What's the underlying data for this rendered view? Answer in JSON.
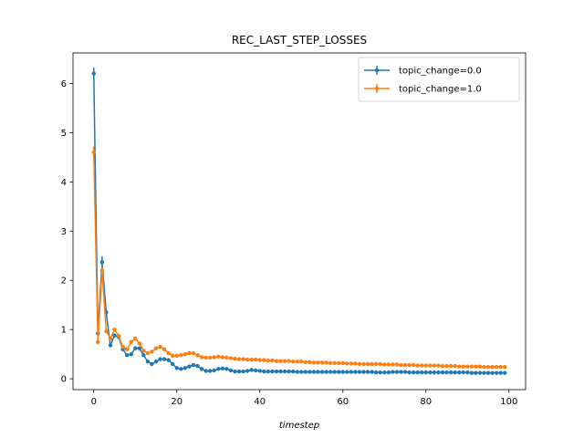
{
  "chart_data": {
    "type": "line",
    "title": "REC_LAST_STEP_LOSSES",
    "xlabel": "timestep",
    "ylabel": "",
    "xlim": [
      -5,
      104
    ],
    "ylim": [
      -0.22,
      6.62
    ],
    "xticks": [
      0,
      20,
      40,
      60,
      80,
      100
    ],
    "yticks": [
      0,
      1,
      2,
      3,
      4,
      5,
      6
    ],
    "legend_position": "top-right",
    "grid": false,
    "x": [
      0,
      1,
      2,
      3,
      4,
      5,
      6,
      7,
      8,
      9,
      10,
      11,
      12,
      13,
      14,
      15,
      16,
      17,
      18,
      19,
      20,
      21,
      22,
      23,
      24,
      25,
      26,
      27,
      28,
      29,
      30,
      31,
      32,
      33,
      34,
      35,
      36,
      37,
      38,
      39,
      40,
      41,
      42,
      43,
      44,
      45,
      46,
      47,
      48,
      49,
      50,
      51,
      52,
      53,
      54,
      55,
      56,
      57,
      58,
      59,
      60,
      61,
      62,
      63,
      64,
      65,
      66,
      67,
      68,
      69,
      70,
      71,
      72,
      73,
      74,
      75,
      76,
      77,
      78,
      79,
      80,
      81,
      82,
      83,
      84,
      85,
      86,
      87,
      88,
      89,
      90,
      91,
      92,
      93,
      94,
      95,
      96,
      97,
      98,
      99
    ],
    "series": [
      {
        "name": "topic_change=0.0",
        "color": "#1f77b4",
        "values": [
          6.2,
          0.92,
          2.37,
          1.35,
          0.68,
          0.88,
          0.85,
          0.6,
          0.48,
          0.5,
          0.62,
          0.62,
          0.48,
          0.35,
          0.3,
          0.35,
          0.4,
          0.4,
          0.38,
          0.3,
          0.22,
          0.2,
          0.22,
          0.25,
          0.28,
          0.26,
          0.2,
          0.16,
          0.16,
          0.17,
          0.2,
          0.21,
          0.2,
          0.17,
          0.15,
          0.15,
          0.15,
          0.16,
          0.18,
          0.17,
          0.16,
          0.15,
          0.15,
          0.15,
          0.15,
          0.15,
          0.15,
          0.15,
          0.15,
          0.14,
          0.14,
          0.14,
          0.14,
          0.14,
          0.14,
          0.14,
          0.14,
          0.14,
          0.14,
          0.14,
          0.14,
          0.14,
          0.14,
          0.14,
          0.14,
          0.14,
          0.14,
          0.14,
          0.13,
          0.13,
          0.13,
          0.13,
          0.14,
          0.14,
          0.14,
          0.14,
          0.13,
          0.13,
          0.13,
          0.13,
          0.13,
          0.13,
          0.13,
          0.13,
          0.13,
          0.13,
          0.13,
          0.13,
          0.13,
          0.13,
          0.13,
          0.12,
          0.12,
          0.12,
          0.12,
          0.12,
          0.12,
          0.12,
          0.12,
          0.12
        ],
        "errors": [
          0.12,
          0.06,
          0.12,
          0.05,
          0.04,
          0.03,
          0.03,
          0.02,
          0.02,
          0.02,
          0.02,
          0.02,
          0.02,
          0.02,
          0.02,
          0.02,
          0.02,
          0.02,
          0.02,
          0.01,
          0.01,
          0.01,
          0.01,
          0.01,
          0.01,
          0.01,
          0.01,
          0.01,
          0.01,
          0.01,
          0.01,
          0.01,
          0.01,
          0.01,
          0.01,
          0.01,
          0.01,
          0.01,
          0.01,
          0.01,
          0.01,
          0.01,
          0.01,
          0.01,
          0.01,
          0.01,
          0.01,
          0.01,
          0.01,
          0.01,
          0.01,
          0.01,
          0.01,
          0.01,
          0.01,
          0.01,
          0.01,
          0.01,
          0.01,
          0.01,
          0.01,
          0.01,
          0.01,
          0.01,
          0.01,
          0.01,
          0.01,
          0.01,
          0.01,
          0.01,
          0.01,
          0.01,
          0.01,
          0.01,
          0.01,
          0.01,
          0.01,
          0.01,
          0.01,
          0.01,
          0.01,
          0.01,
          0.01,
          0.01,
          0.01,
          0.01,
          0.01,
          0.01,
          0.01,
          0.01,
          0.01,
          0.01,
          0.01,
          0.01,
          0.01,
          0.01,
          0.01,
          0.01,
          0.01,
          0.01
        ]
      },
      {
        "name": "topic_change=1.0",
        "color": "#ff7f0e",
        "values": [
          4.6,
          0.75,
          2.2,
          0.97,
          0.82,
          1.0,
          0.87,
          0.65,
          0.6,
          0.75,
          0.82,
          0.72,
          0.57,
          0.52,
          0.55,
          0.62,
          0.65,
          0.6,
          0.52,
          0.47,
          0.47,
          0.48,
          0.5,
          0.52,
          0.52,
          0.48,
          0.44,
          0.43,
          0.43,
          0.44,
          0.45,
          0.44,
          0.43,
          0.42,
          0.41,
          0.4,
          0.4,
          0.39,
          0.39,
          0.39,
          0.38,
          0.38,
          0.37,
          0.37,
          0.36,
          0.36,
          0.36,
          0.36,
          0.35,
          0.35,
          0.35,
          0.34,
          0.34,
          0.33,
          0.33,
          0.33,
          0.33,
          0.32,
          0.32,
          0.32,
          0.32,
          0.31,
          0.31,
          0.31,
          0.3,
          0.3,
          0.3,
          0.3,
          0.3,
          0.3,
          0.29,
          0.29,
          0.29,
          0.29,
          0.28,
          0.28,
          0.28,
          0.28,
          0.27,
          0.27,
          0.27,
          0.27,
          0.27,
          0.27,
          0.26,
          0.26,
          0.26,
          0.26,
          0.25,
          0.25,
          0.25,
          0.25,
          0.25,
          0.25,
          0.24,
          0.24,
          0.24,
          0.24,
          0.24,
          0.24
        ],
        "errors": [
          0.12,
          0.05,
          0.1,
          0.04,
          0.03,
          0.03,
          0.03,
          0.02,
          0.02,
          0.02,
          0.02,
          0.02,
          0.02,
          0.02,
          0.02,
          0.02,
          0.02,
          0.02,
          0.02,
          0.01,
          0.01,
          0.01,
          0.01,
          0.01,
          0.01,
          0.01,
          0.01,
          0.01,
          0.01,
          0.01,
          0.01,
          0.01,
          0.01,
          0.01,
          0.01,
          0.01,
          0.01,
          0.01,
          0.01,
          0.01,
          0.01,
          0.01,
          0.01,
          0.01,
          0.01,
          0.01,
          0.01,
          0.01,
          0.01,
          0.01,
          0.01,
          0.01,
          0.01,
          0.01,
          0.01,
          0.01,
          0.01,
          0.01,
          0.01,
          0.01,
          0.01,
          0.01,
          0.01,
          0.01,
          0.01,
          0.01,
          0.01,
          0.01,
          0.01,
          0.01,
          0.01,
          0.01,
          0.01,
          0.01,
          0.01,
          0.01,
          0.01,
          0.01,
          0.01,
          0.01,
          0.01,
          0.01,
          0.01,
          0.01,
          0.01,
          0.01,
          0.01,
          0.01,
          0.01,
          0.01,
          0.01,
          0.01,
          0.01,
          0.01,
          0.01,
          0.01,
          0.01,
          0.01,
          0.01,
          0.01
        ]
      }
    ]
  }
}
